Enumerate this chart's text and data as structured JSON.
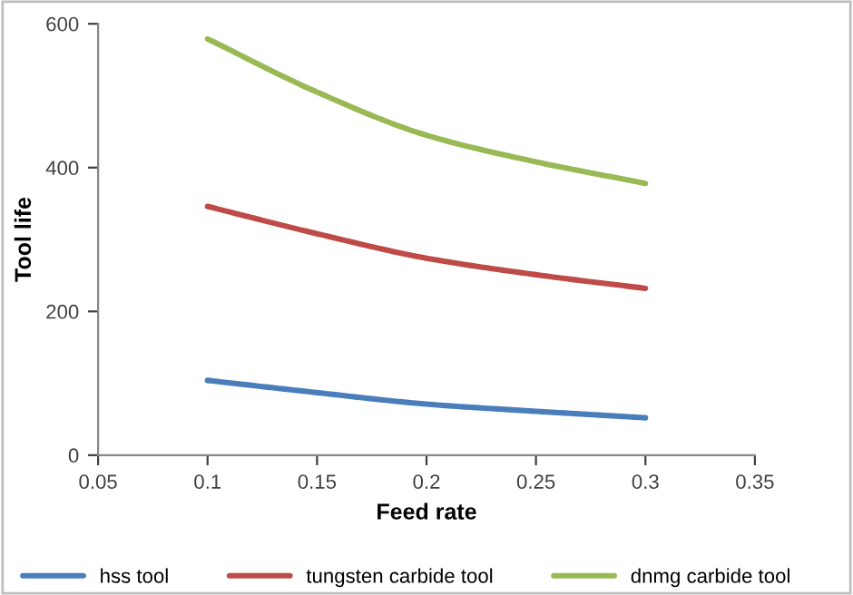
{
  "chart_data": {
    "type": "line",
    "xlabel": "Feed rate",
    "ylabel": "Tool life",
    "x": [
      0.1,
      0.15,
      0.2,
      0.25,
      0.3
    ],
    "series": [
      {
        "name": "hss tool",
        "color": "#4a7ebb",
        "values": [
          104,
          87,
          71,
          61,
          52
        ]
      },
      {
        "name": "tungsten carbide tool",
        "color": "#be4b48",
        "values": [
          346,
          308,
          274,
          251,
          232
        ]
      },
      {
        "name": "dnmg carbide tool",
        "color": "#98b954",
        "values": [
          579,
          505,
          445,
          408,
          378
        ]
      }
    ],
    "xlim": [
      0.05,
      0.35
    ],
    "xticks": [
      0.05,
      0.1,
      0.15,
      0.2,
      0.25,
      0.3,
      0.35
    ],
    "ylim": [
      0,
      600
    ],
    "yticks": [
      0,
      200,
      400,
      600
    ],
    "grid": false,
    "legend": "bottom",
    "marker": "none",
    "line_style": "solid"
  }
}
